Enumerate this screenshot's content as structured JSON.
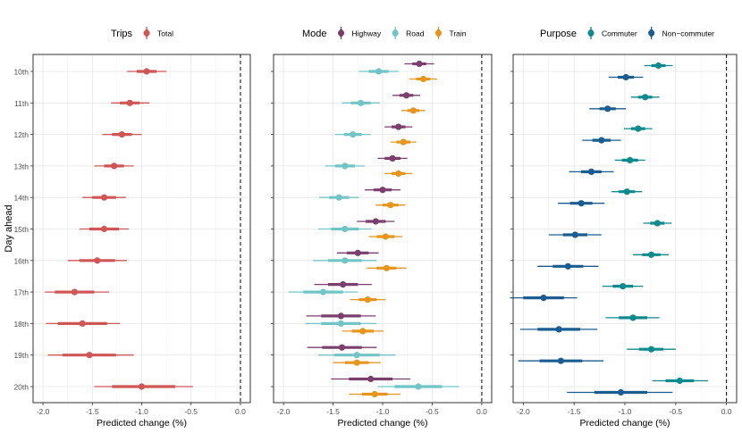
{
  "y_axis_label": "Day ahead",
  "reference_line_value": 0.0,
  "chart_data": [
    {
      "type": "dot-whisker",
      "legend_title": "Trips",
      "xlabel": "Predicted change (%)",
      "ylabel": "Day ahead",
      "xlim": [
        -2.1,
        0.1
      ],
      "x_ticks": [
        -2.0,
        -1.5,
        -1.0,
        -0.5,
        0.0
      ],
      "x_tick_labels": [
        "-2.0",
        "-1.5",
        "-1.0",
        "-0.5",
        "0.0"
      ],
      "categories": [
        "10th",
        "11th",
        "12th",
        "13th",
        "14th",
        "15th",
        "16th",
        "17th",
        "18th",
        "19th",
        "20th"
      ],
      "series": [
        {
          "name": "Total",
          "color": "#d05656",
          "estimates": [
            -0.95,
            -1.12,
            -1.2,
            -1.28,
            -1.38,
            -1.38,
            -1.45,
            -1.68,
            -1.6,
            -1.53,
            -1.0
          ],
          "inner_lower": [
            -1.05,
            -1.22,
            -1.3,
            -1.38,
            -1.5,
            -1.53,
            -1.63,
            -1.88,
            -1.85,
            -1.8,
            -1.3
          ],
          "inner_upper": [
            -0.85,
            -1.02,
            -1.1,
            -1.18,
            -1.26,
            -1.23,
            -1.27,
            -1.48,
            -1.35,
            -1.26,
            -0.66
          ],
          "outer_lower": [
            -1.15,
            -1.31,
            -1.4,
            -1.48,
            -1.6,
            -1.63,
            -1.75,
            -1.98,
            -1.97,
            -1.95,
            -1.48
          ],
          "outer_upper": [
            -0.75,
            -0.92,
            -1.0,
            -1.08,
            -1.16,
            -1.13,
            -1.15,
            -1.33,
            -1.22,
            -1.08,
            -0.48
          ]
        }
      ]
    },
    {
      "type": "dot-whisker",
      "legend_title": "Mode",
      "xlabel": "Predicted change (%)",
      "ylabel": "Day ahead",
      "xlim": [
        -2.1,
        0.1
      ],
      "x_ticks": [
        -2.0,
        -1.5,
        -1.0,
        -0.5,
        0.0
      ],
      "x_tick_labels": [
        "-2.0",
        "-1.5",
        "-1.0",
        "-0.5",
        "0.0"
      ],
      "categories": [
        "10th",
        "11th",
        "12th",
        "13th",
        "14th",
        "15th",
        "16th",
        "17th",
        "18th",
        "19th",
        "20th"
      ],
      "series": [
        {
          "name": "Highway",
          "color": "#7b3f6e",
          "estimates": [
            -0.63,
            -0.76,
            -0.84,
            -0.9,
            -1.0,
            -1.07,
            -1.25,
            -1.4,
            -1.42,
            -1.41,
            -1.12
          ],
          "inner_lower": [
            -0.7,
            -0.83,
            -0.91,
            -0.98,
            -1.09,
            -1.17,
            -1.36,
            -1.55,
            -1.62,
            -1.61,
            -1.34
          ],
          "inner_upper": [
            -0.56,
            -0.69,
            -0.77,
            -0.82,
            -0.91,
            -0.97,
            -1.14,
            -1.25,
            -1.22,
            -1.21,
            -0.9
          ],
          "outer_lower": [
            -0.78,
            -0.9,
            -0.98,
            -1.05,
            -1.18,
            -1.26,
            -1.46,
            -1.69,
            -1.77,
            -1.76,
            -1.52
          ],
          "outer_upper": [
            -0.48,
            -0.62,
            -0.7,
            -0.75,
            -0.82,
            -0.88,
            -1.04,
            -1.11,
            -1.07,
            -1.06,
            -0.72
          ]
        },
        {
          "name": "Road",
          "color": "#72c5c7",
          "estimates": [
            -1.04,
            -1.22,
            -1.3,
            -1.38,
            -1.44,
            -1.38,
            -1.38,
            -1.6,
            -1.42,
            -1.26,
            -0.64
          ],
          "inner_lower": [
            -1.14,
            -1.32,
            -1.39,
            -1.48,
            -1.54,
            -1.52,
            -1.55,
            -1.8,
            -1.62,
            -1.49,
            -0.88
          ],
          "inner_upper": [
            -0.94,
            -1.12,
            -1.21,
            -1.28,
            -1.34,
            -1.24,
            -1.21,
            -1.4,
            -1.22,
            -1.03,
            -0.4
          ],
          "outer_lower": [
            -1.24,
            -1.41,
            -1.48,
            -1.58,
            -1.64,
            -1.65,
            -1.7,
            -1.95,
            -1.78,
            -1.65,
            -1.05
          ],
          "outer_upper": [
            -0.84,
            -1.03,
            -1.12,
            -1.18,
            -1.24,
            -1.11,
            -1.06,
            -1.25,
            -1.06,
            -0.87,
            -0.23
          ]
        },
        {
          "name": "Train",
          "color": "#e8951e",
          "estimates": [
            -0.59,
            -0.69,
            -0.79,
            -0.84,
            -0.92,
            -0.97,
            -0.96,
            -1.15,
            -1.2,
            -1.26,
            -1.08
          ],
          "inner_lower": [
            -0.66,
            -0.75,
            -0.86,
            -0.91,
            -1.0,
            -1.06,
            -1.06,
            -1.24,
            -1.31,
            -1.38,
            -1.21
          ],
          "inner_upper": [
            -0.52,
            -0.63,
            -0.72,
            -0.77,
            -0.84,
            -0.88,
            -0.86,
            -1.06,
            -1.09,
            -1.14,
            -0.95
          ],
          "outer_lower": [
            -0.73,
            -0.81,
            -0.92,
            -0.98,
            -1.07,
            -1.14,
            -1.16,
            -1.33,
            -1.41,
            -1.5,
            -1.34
          ],
          "outer_upper": [
            -0.45,
            -0.57,
            -0.66,
            -0.7,
            -0.77,
            -0.8,
            -0.76,
            -0.97,
            -0.99,
            -1.02,
            -0.82
          ]
        }
      ]
    },
    {
      "type": "dot-whisker",
      "legend_title": "Purpose",
      "xlabel": "Predicted change (%)",
      "ylabel": "Day ahead",
      "xlim": [
        -2.1,
        0.1
      ],
      "x_ticks": [
        -2.0,
        -1.5,
        -1.0,
        -0.5,
        0.0
      ],
      "x_tick_labels": [
        "-2.0",
        "-1.5",
        "-1.0",
        "-0.5",
        "0.0"
      ],
      "categories": [
        "10th",
        "11th",
        "12th",
        "13th",
        "14th",
        "15th",
        "16th",
        "17th",
        "18th",
        "19th",
        "20th"
      ],
      "series": [
        {
          "name": "Commuter",
          "color": "#0f8a8f",
          "estimates": [
            -0.67,
            -0.8,
            -0.87,
            -0.95,
            -0.98,
            -0.68,
            -0.74,
            -1.02,
            -0.92,
            -0.74,
            -0.46
          ],
          "inner_lower": [
            -0.74,
            -0.87,
            -0.94,
            -1.03,
            -1.06,
            -0.75,
            -0.83,
            -1.12,
            -1.06,
            -0.86,
            -0.6
          ],
          "inner_upper": [
            -0.6,
            -0.73,
            -0.8,
            -0.87,
            -0.9,
            -0.61,
            -0.65,
            -0.92,
            -0.78,
            -0.62,
            -0.32
          ],
          "outer_lower": [
            -0.81,
            -0.94,
            -1.01,
            -1.1,
            -1.13,
            -0.82,
            -0.92,
            -1.22,
            -1.19,
            -0.98,
            -0.73
          ],
          "outer_upper": [
            -0.53,
            -0.66,
            -0.73,
            -0.8,
            -0.83,
            -0.54,
            -0.57,
            -0.82,
            -0.66,
            -0.5,
            -0.18
          ]
        },
        {
          "name": "Non−commuter",
          "color": "#1c5d91",
          "estimates": [
            -0.99,
            -1.17,
            -1.23,
            -1.33,
            -1.43,
            -1.49,
            -1.56,
            -1.8,
            -1.65,
            -1.63,
            -1.04
          ],
          "inner_lower": [
            -1.07,
            -1.25,
            -1.32,
            -1.43,
            -1.54,
            -1.61,
            -1.71,
            -2.0,
            -1.86,
            -1.84,
            -1.3
          ],
          "inner_upper": [
            -0.91,
            -1.09,
            -1.14,
            -1.23,
            -1.32,
            -1.37,
            -1.41,
            -1.6,
            -1.44,
            -1.42,
            -0.78
          ],
          "outer_lower": [
            -1.16,
            -1.35,
            -1.42,
            -1.55,
            -1.66,
            -1.75,
            -1.86,
            -2.13,
            -2.03,
            -2.05,
            -1.57
          ],
          "outer_upper": [
            -0.82,
            -0.99,
            -1.04,
            -1.11,
            -1.2,
            -1.23,
            -1.26,
            -1.47,
            -1.27,
            -1.21,
            -0.53
          ]
        }
      ]
    }
  ]
}
